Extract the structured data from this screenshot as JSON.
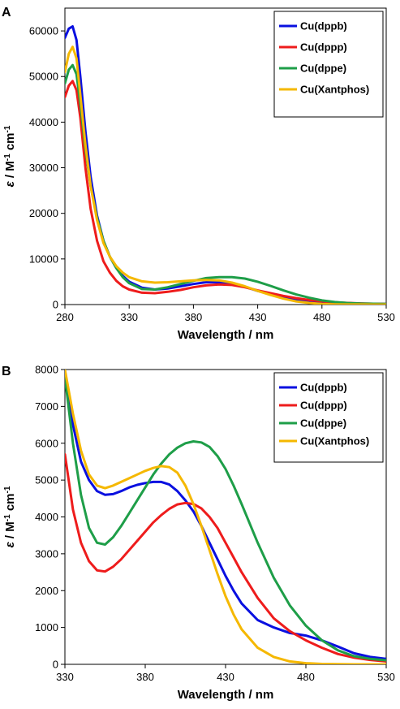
{
  "chart_data": [
    {
      "type": "line",
      "panel_label": "A",
      "xlabel": "Wavelength / nm",
      "ylabel_symbol": "ε",
      "ylabel_rest": " / M",
      "ylabel_sup1": "-1",
      "ylabel_mid": " cm",
      "ylabel_sup2": "-1",
      "xlim": [
        280,
        530
      ],
      "ylim": [
        0,
        65000
      ],
      "xticks": [
        "280",
        "330",
        "380",
        "430",
        "480",
        "530"
      ],
      "yticks": [
        "0",
        "10000",
        "20000",
        "30000",
        "40000",
        "50000",
        "60000"
      ],
      "legend_position": "top-right",
      "series": [
        {
          "name": "Cu(dppb)",
          "color": "#0a10e0",
          "x": [
            280,
            283,
            286,
            289,
            292,
            296,
            300,
            305,
            310,
            315,
            320,
            325,
            330,
            340,
            350,
            360,
            370,
            380,
            390,
            400,
            410,
            420,
            430,
            440,
            450,
            460,
            470,
            480,
            490,
            500,
            510,
            520,
            530
          ],
          "y": [
            58500,
            60500,
            61000,
            58000,
            50000,
            38000,
            28000,
            19500,
            14000,
            10500,
            8000,
            6300,
            5000,
            3700,
            3300,
            3500,
            4000,
            4500,
            4900,
            4900,
            4500,
            3900,
            3000,
            2300,
            1600,
            1100,
            800,
            600,
            450,
            300,
            200,
            150,
            120
          ]
        },
        {
          "name": "Cu(dppp)",
          "color": "#ee1c1c",
          "x": [
            280,
            283,
            286,
            289,
            292,
            296,
            300,
            305,
            310,
            315,
            320,
            325,
            330,
            340,
            350,
            360,
            370,
            380,
            390,
            400,
            410,
            420,
            430,
            440,
            450,
            460,
            470,
            480,
            490,
            500,
            510,
            520,
            530
          ],
          "y": [
            45500,
            48000,
            49000,
            47000,
            41000,
            30000,
            21000,
            14000,
            9500,
            7000,
            5200,
            4000,
            3300,
            2600,
            2500,
            2800,
            3200,
            3800,
            4200,
            4400,
            4300,
            3800,
            3100,
            2500,
            1900,
            1400,
            1000,
            700,
            500,
            350,
            250,
            180,
            120
          ]
        },
        {
          "name": "Cu(dppe)",
          "color": "#1e9e48",
          "x": [
            280,
            283,
            286,
            289,
            292,
            296,
            300,
            305,
            310,
            315,
            320,
            325,
            330,
            340,
            350,
            360,
            370,
            380,
            390,
            400,
            410,
            420,
            430,
            440,
            450,
            460,
            470,
            480,
            490,
            500,
            510,
            520,
            530
          ],
          "y": [
            48500,
            51500,
            52500,
            50500,
            44000,
            34000,
            26000,
            19000,
            14000,
            10500,
            8000,
            6000,
            4700,
            3400,
            3300,
            3800,
            4500,
            5200,
            5800,
            6000,
            6000,
            5700,
            5000,
            4100,
            3100,
            2200,
            1500,
            900,
            550,
            330,
            220,
            180,
            150
          ]
        },
        {
          "name": "Cu(Xantphos)",
          "color": "#f5b800",
          "x": [
            280,
            283,
            286,
            289,
            292,
            296,
            300,
            305,
            310,
            315,
            320,
            325,
            330,
            340,
            350,
            360,
            370,
            380,
            390,
            400,
            410,
            420,
            430,
            440,
            450,
            460,
            470,
            480,
            490,
            500,
            510,
            520,
            530
          ],
          "y": [
            51000,
            55000,
            56500,
            54000,
            46000,
            35000,
            26000,
            18500,
            13500,
            10500,
            8400,
            7000,
            6000,
            5100,
            4800,
            4900,
            5100,
            5300,
            5400,
            5300,
            4800,
            4000,
            3000,
            2100,
            1300,
            700,
            350,
            150,
            60,
            20,
            10,
            5,
            0
          ]
        }
      ]
    },
    {
      "type": "line",
      "panel_label": "B",
      "xlabel": "Wavelength / nm",
      "ylabel_symbol": "ε",
      "ylabel_rest": " / M",
      "ylabel_sup1": "-1",
      "ylabel_mid": " cm",
      "ylabel_sup2": "-1",
      "xlim": [
        330,
        530
      ],
      "ylim": [
        0,
        8000
      ],
      "xticks": [
        "330",
        "380",
        "430",
        "480",
        "530"
      ],
      "yticks": [
        "0",
        "1000",
        "2000",
        "3000",
        "4000",
        "5000",
        "6000",
        "7000",
        "8000"
      ],
      "legend_position": "top-right",
      "series": [
        {
          "name": "Cu(dppb)",
          "color": "#0a10e0",
          "x": [
            330,
            335,
            340,
            345,
            350,
            355,
            360,
            365,
            370,
            375,
            380,
            385,
            390,
            395,
            400,
            405,
            410,
            415,
            420,
            425,
            430,
            435,
            440,
            450,
            460,
            470,
            480,
            490,
            500,
            510,
            520,
            530
          ],
          "y": [
            7900,
            6500,
            5500,
            5000,
            4700,
            4600,
            4620,
            4700,
            4800,
            4870,
            4920,
            4950,
            4950,
            4880,
            4700,
            4450,
            4150,
            3750,
            3300,
            2850,
            2400,
            2000,
            1650,
            1200,
            1000,
            850,
            780,
            650,
            480,
            300,
            200,
            150
          ]
        },
        {
          "name": "Cu(dppp)",
          "color": "#ee1c1c",
          "x": [
            330,
            335,
            340,
            345,
            350,
            355,
            360,
            365,
            370,
            375,
            380,
            385,
            390,
            395,
            400,
            405,
            410,
            415,
            420,
            425,
            430,
            435,
            440,
            450,
            460,
            470,
            480,
            490,
            500,
            510,
            520,
            530
          ],
          "y": [
            5700,
            4200,
            3300,
            2800,
            2550,
            2520,
            2650,
            2850,
            3100,
            3350,
            3600,
            3850,
            4050,
            4220,
            4340,
            4380,
            4350,
            4230,
            4000,
            3700,
            3300,
            2900,
            2500,
            1800,
            1250,
            900,
            650,
            450,
            280,
            180,
            120,
            80
          ]
        },
        {
          "name": "Cu(dppe)",
          "color": "#1e9e48",
          "x": [
            330,
            335,
            340,
            345,
            350,
            355,
            360,
            365,
            370,
            375,
            380,
            385,
            390,
            395,
            400,
            405,
            410,
            415,
            420,
            425,
            430,
            435,
            440,
            450,
            460,
            470,
            480,
            490,
            500,
            510,
            520,
            530
          ],
          "y": [
            7800,
            6000,
            4600,
            3700,
            3300,
            3250,
            3450,
            3750,
            4100,
            4450,
            4800,
            5150,
            5450,
            5700,
            5880,
            6000,
            6050,
            6020,
            5900,
            5650,
            5300,
            4850,
            4350,
            3300,
            2350,
            1600,
            1050,
            650,
            380,
            220,
            150,
            110
          ]
        },
        {
          "name": "Cu(Xantphos)",
          "color": "#f5b800",
          "x": [
            330,
            335,
            340,
            345,
            350,
            355,
            360,
            365,
            370,
            375,
            380,
            385,
            390,
            395,
            400,
            405,
            410,
            415,
            420,
            425,
            430,
            435,
            440,
            450,
            460,
            470,
            480,
            490,
            500,
            510,
            520,
            530
          ],
          "y": [
            8000,
            6800,
            5800,
            5150,
            4850,
            4780,
            4850,
            4950,
            5050,
            5150,
            5250,
            5330,
            5380,
            5350,
            5200,
            4850,
            4350,
            3750,
            3100,
            2450,
            1850,
            1350,
            950,
            450,
            200,
            80,
            30,
            10,
            5,
            0,
            0,
            0
          ]
        }
      ]
    }
  ]
}
